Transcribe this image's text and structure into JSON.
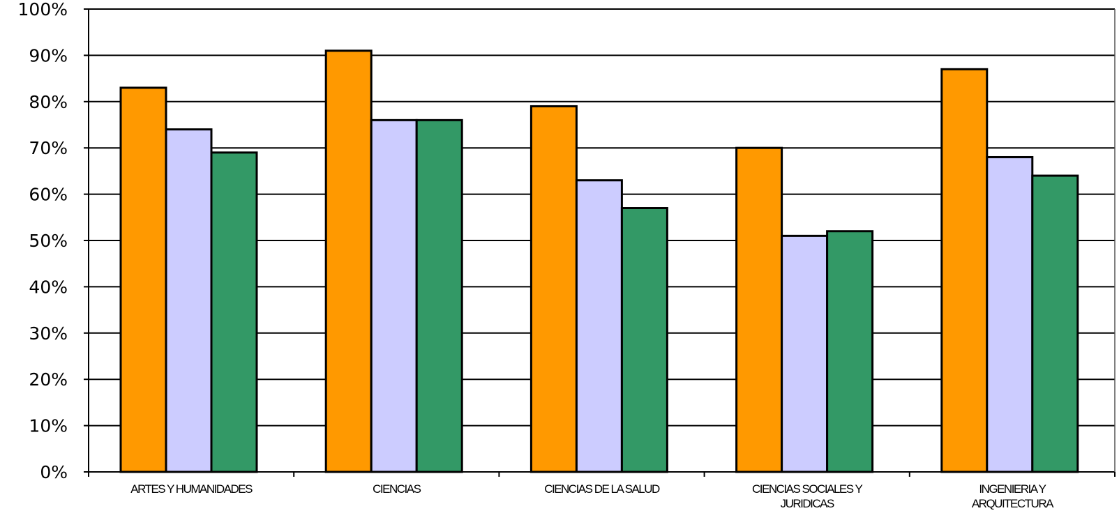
{
  "chart_data": {
    "type": "bar",
    "categories": [
      [
        "ARTES Y HUMANIDADES"
      ],
      [
        "CIENCIAS"
      ],
      [
        "CIENCIAS DE LA SALUD"
      ],
      [
        "CIENCIAS SOCIALES Y",
        "JURIDICAS"
      ],
      [
        "INGENIERIA Y",
        "ARQUITECTURA"
      ]
    ],
    "series": [
      {
        "color": "#FF9900",
        "values": [
          83,
          91,
          79,
          70,
          87
        ]
      },
      {
        "color": "#CCCCFF",
        "values": [
          74,
          76,
          63,
          51,
          68
        ]
      },
      {
        "color": "#339966",
        "values": [
          69,
          76,
          57,
          52,
          64
        ]
      }
    ],
    "ylim": [
      0,
      100
    ],
    "y_ticks": [
      "0%",
      "10%",
      "20%",
      "30%",
      "40%",
      "50%",
      "60%",
      "70%",
      "80%",
      "90%",
      "100%"
    ],
    "grid": true,
    "legend": "none",
    "title": "",
    "xlabel": "",
    "ylabel": ""
  }
}
